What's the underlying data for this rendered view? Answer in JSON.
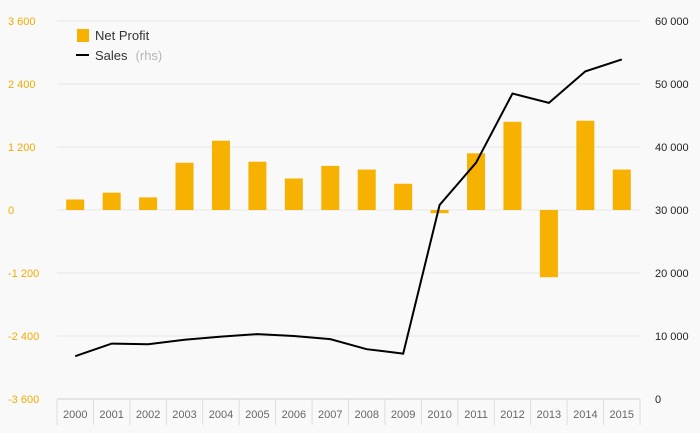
{
  "chart_data": {
    "type": "bar+line",
    "categories": [
      "2000",
      "2001",
      "2002",
      "2003",
      "2004",
      "2005",
      "2006",
      "2007",
      "2008",
      "2009",
      "2010",
      "2011",
      "2012",
      "2013",
      "2014",
      "2015"
    ],
    "series": [
      {
        "name": "Net Profit",
        "type": "bar",
        "axis": "left",
        "color": "#f7b100",
        "values": [
          200,
          330,
          240,
          900,
          1320,
          920,
          600,
          840,
          770,
          500,
          -60,
          1080,
          1680,
          -1280,
          1700,
          770
        ]
      },
      {
        "name": "Sales",
        "name_suffix": "(rhs)",
        "type": "line",
        "axis": "right",
        "color": "#000000",
        "values": [
          6800,
          8800,
          8700,
          9400,
          9900,
          10300,
          10000,
          9500,
          7900,
          7200,
          30800,
          37500,
          48500,
          47000,
          52000,
          53900
        ]
      }
    ],
    "y_left": {
      "lim": [
        -3600,
        3600
      ],
      "ticks": [
        -3600,
        -2400,
        -1200,
        0,
        1200,
        2400,
        3600
      ],
      "tick_labels": [
        "-3 600",
        "-2 400",
        "-1 200",
        "0",
        "1 200",
        "2 400",
        "3 600"
      ]
    },
    "y_right": {
      "lim": [
        0,
        60000
      ],
      "ticks": [
        0,
        10000,
        20000,
        30000,
        40000,
        50000,
        60000
      ],
      "tick_labels": [
        "0",
        "10 000",
        "20 000",
        "30 000",
        "40 000",
        "50 000",
        "60 000"
      ]
    },
    "legend_position": "top-left",
    "grid": true
  }
}
